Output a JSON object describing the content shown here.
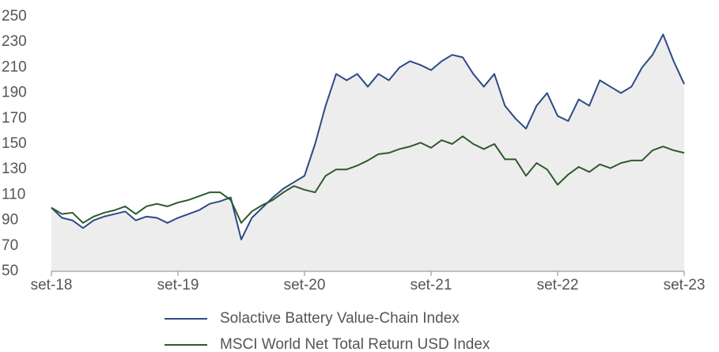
{
  "chart_data": {
    "type": "line",
    "categories": [
      "set-18",
      null,
      null,
      null,
      null,
      null,
      null,
      null,
      null,
      null,
      null,
      null,
      "set-19",
      null,
      null,
      null,
      null,
      null,
      null,
      null,
      null,
      null,
      null,
      null,
      "set-20",
      null,
      null,
      null,
      null,
      null,
      null,
      null,
      null,
      null,
      null,
      null,
      "set-21",
      null,
      null,
      null,
      null,
      null,
      null,
      null,
      null,
      null,
      null,
      null,
      "set-22",
      null,
      null,
      null,
      null,
      null,
      null,
      null,
      null,
      null,
      null,
      null,
      "set-23"
    ],
    "series": [
      {
        "name": "Solactive Battery Value-Chain Index",
        "color": "#2e4a87",
        "fill": "#eeedee",
        "values": [
          100,
          92,
          90,
          84,
          90,
          93,
          95,
          97,
          90,
          93,
          92,
          88,
          92,
          95,
          98,
          103,
          105,
          108,
          75,
          92,
          100,
          108,
          115,
          120,
          125,
          150,
          180,
          205,
          200,
          205,
          195,
          205,
          200,
          210,
          215,
          212,
          208,
          215,
          220,
          218,
          205,
          195,
          205,
          180,
          170,
          162,
          180,
          190,
          172,
          168,
          185,
          180,
          200,
          195,
          190,
          195,
          210,
          220,
          236,
          215,
          197
        ]
      },
      {
        "name": "MSCI World Net Total Return USD Index",
        "color": "#2e5a2a",
        "values": [
          100,
          95,
          96,
          88,
          93,
          96,
          98,
          101,
          95,
          101,
          103,
          101,
          104,
          106,
          109,
          112,
          112,
          106,
          88,
          97,
          102,
          106,
          112,
          117,
          114,
          112,
          125,
          130,
          130,
          133,
          137,
          142,
          143,
          146,
          148,
          151,
          147,
          153,
          150,
          156,
          150,
          146,
          150,
          138,
          138,
          125,
          135,
          130,
          118,
          126,
          132,
          128,
          134,
          131,
          135,
          137,
          137,
          145,
          148,
          145,
          143
        ]
      }
    ],
    "ylim": [
      50,
      250
    ],
    "yticks": [
      50,
      70,
      90,
      110,
      130,
      150,
      170,
      190,
      210,
      230,
      250
    ]
  }
}
